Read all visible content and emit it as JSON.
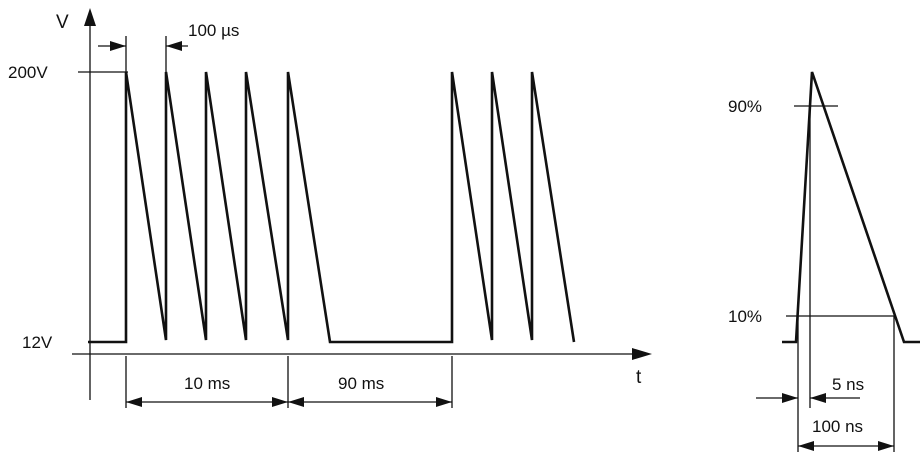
{
  "left_diagram": {
    "y_axis_label": "V",
    "x_axis_label": "t",
    "level_high": "200V",
    "level_low": "12V",
    "pulse_spacing": "100 µs",
    "burst_duration": "10 ms",
    "burst_pause": "90 ms"
  },
  "right_diagram": {
    "level_90": "90%",
    "level_10": "10%",
    "rise_time": "5 ns",
    "pulse_width": "100 ns"
  }
}
